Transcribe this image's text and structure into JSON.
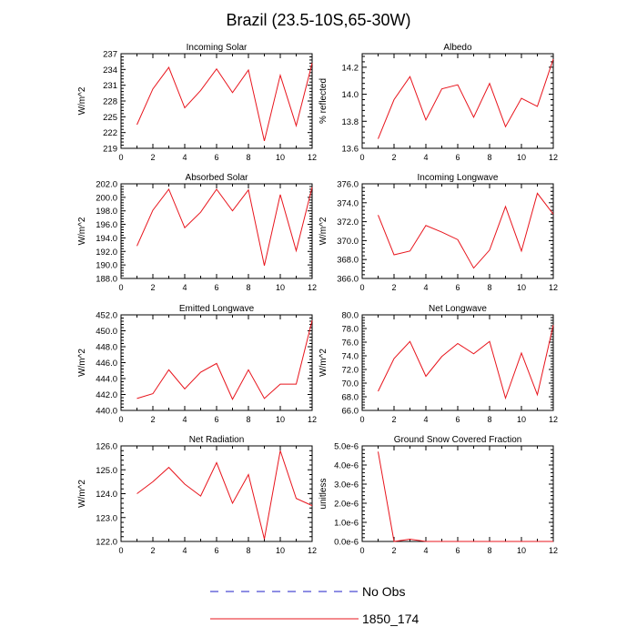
{
  "title": "Brazil (23.5-10S,65-30W)",
  "colors": {
    "model": "#e8141c",
    "obs": "#1c1cc8",
    "axis": "#000000"
  },
  "legend": [
    {
      "label": "No Obs",
      "style": "dashed",
      "color": "#1c1cc8"
    },
    {
      "label": "1850_174",
      "style": "solid",
      "color": "#e8141c"
    }
  ],
  "chart_data": [
    {
      "type": "line",
      "title": "Incoming Solar",
      "ylabel": "W/m^2",
      "xlim": [
        0,
        12
      ],
      "xticks": [
        0,
        2,
        4,
        6,
        8,
        10,
        12
      ],
      "ylim": [
        219,
        237
      ],
      "yticks": [
        "219",
        "222",
        "225",
        "228",
        "231",
        "234",
        "237"
      ],
      "ytick_values": [
        219,
        222,
        225,
        228,
        231,
        234,
        237
      ],
      "right_labels": false,
      "x": [
        1,
        2,
        3,
        4,
        5,
        6,
        7,
        8,
        9,
        10,
        11,
        12
      ],
      "series": [
        {
          "name": "1850_174",
          "values": [
            223.5,
            230.3,
            234.4,
            226.7,
            230.0,
            234.1,
            229.6,
            233.9,
            220.4,
            232.9,
            223.3,
            235.2
          ]
        }
      ]
    },
    {
      "type": "line",
      "title": "Albedo",
      "ylabel": "% reflected",
      "xlim": [
        0,
        12
      ],
      "xticks": [
        0,
        2,
        4,
        6,
        8,
        10,
        12
      ],
      "ylim": [
        13.6,
        14.3
      ],
      "yticks": [
        "13.6",
        "13.8",
        "14.0",
        "14.2"
      ],
      "ytick_values": [
        13.6,
        13.8,
        14.0,
        14.2
      ],
      "right_labels": true,
      "x": [
        1,
        2,
        3,
        4,
        5,
        6,
        7,
        8,
        9,
        10,
        11,
        12
      ],
      "series": [
        {
          "name": "1850_174",
          "values": [
            13.67,
            13.96,
            14.13,
            13.81,
            14.04,
            14.07,
            13.83,
            14.08,
            13.76,
            13.97,
            13.91,
            14.26
          ]
        }
      ]
    },
    {
      "type": "line",
      "title": "Absorbed Solar",
      "ylabel": "W/m^2",
      "xlim": [
        0,
        12
      ],
      "xticks": [
        0,
        2,
        4,
        6,
        8,
        10,
        12
      ],
      "ylim": [
        188.0,
        202.0
      ],
      "yticks": [
        "188.0",
        "190.0",
        "192.0",
        "194.0",
        "196.0",
        "198.0",
        "200.0",
        "202.0"
      ],
      "ytick_values": [
        188,
        190,
        192,
        194,
        196,
        198,
        200,
        202
      ],
      "right_labels": false,
      "x": [
        1,
        2,
        3,
        4,
        5,
        6,
        7,
        8,
        9,
        10,
        11,
        12
      ],
      "series": [
        {
          "name": "1850_174",
          "values": [
            192.8,
            198.1,
            201.2,
            195.5,
            197.8,
            201.2,
            198.0,
            201.1,
            189.9,
            200.4,
            192.1,
            201.5
          ]
        }
      ]
    },
    {
      "type": "line",
      "title": "Incoming Longwave",
      "ylabel": "W/m^2",
      "xlim": [
        0,
        12
      ],
      "xticks": [
        0,
        2,
        4,
        6,
        8,
        10,
        12
      ],
      "ylim": [
        366.0,
        376.0
      ],
      "yticks": [
        "366.0",
        "368.0",
        "370.0",
        "372.0",
        "374.0",
        "376.0"
      ],
      "ytick_values": [
        366,
        368,
        370,
        372,
        374,
        376
      ],
      "right_labels": true,
      "x": [
        1,
        2,
        3,
        4,
        5,
        6,
        7,
        8,
        9,
        10,
        11,
        12
      ],
      "series": [
        {
          "name": "1850_174",
          "values": [
            372.7,
            368.5,
            368.9,
            371.6,
            370.9,
            370.1,
            367.1,
            369.0,
            373.6,
            368.9,
            375.0,
            372.8
          ]
        }
      ]
    },
    {
      "type": "line",
      "title": "Emitted Longwave",
      "ylabel": "W/m^2",
      "xlim": [
        0,
        12
      ],
      "xticks": [
        0,
        2,
        4,
        6,
        8,
        10,
        12
      ],
      "ylim": [
        440.0,
        452.0
      ],
      "yticks": [
        "440.0",
        "442.0",
        "444.0",
        "446.0",
        "448.0",
        "450.0",
        "452.0"
      ],
      "ytick_values": [
        440,
        442,
        444,
        446,
        448,
        450,
        452
      ],
      "right_labels": false,
      "x": [
        1,
        2,
        3,
        4,
        5,
        6,
        7,
        8,
        9,
        10,
        11,
        12
      ],
      "series": [
        {
          "name": "1850_174",
          "values": [
            441.5,
            442.1,
            445.1,
            442.7,
            444.8,
            445.9,
            441.4,
            445.1,
            441.5,
            443.3,
            443.3,
            451.3
          ]
        }
      ]
    },
    {
      "type": "line",
      "title": "Net Longwave",
      "ylabel": "W/m^2",
      "xlim": [
        0,
        12
      ],
      "xticks": [
        0,
        2,
        4,
        6,
        8,
        10,
        12
      ],
      "ylim": [
        66.0,
        80.0
      ],
      "yticks": [
        "66.0",
        "68.0",
        "70.0",
        "72.0",
        "74.0",
        "76.0",
        "78.0",
        "80.0"
      ],
      "ytick_values": [
        66,
        68,
        70,
        72,
        74,
        76,
        78,
        80
      ],
      "right_labels": true,
      "x": [
        1,
        2,
        3,
        4,
        5,
        6,
        7,
        8,
        9,
        10,
        11,
        12
      ],
      "series": [
        {
          "name": "1850_174",
          "values": [
            68.8,
            73.6,
            76.1,
            71.0,
            73.9,
            75.8,
            74.3,
            76.1,
            67.8,
            74.4,
            68.3,
            78.5
          ]
        }
      ]
    },
    {
      "type": "line",
      "title": "Net Radiation",
      "ylabel": "W/m^2",
      "xlim": [
        0,
        12
      ],
      "xticks": [
        0,
        2,
        4,
        6,
        8,
        10,
        12
      ],
      "ylim": [
        122.0,
        126.0
      ],
      "yticks": [
        "122.0",
        "123.0",
        "124.0",
        "125.0",
        "126.0"
      ],
      "ytick_values": [
        122,
        123,
        124,
        125,
        126
      ],
      "right_labels": false,
      "x": [
        1,
        2,
        3,
        4,
        5,
        6,
        7,
        8,
        9,
        10,
        11,
        12
      ],
      "series": [
        {
          "name": "1850_174",
          "values": [
            124.0,
            124.5,
            125.1,
            124.4,
            123.9,
            125.3,
            123.6,
            124.8,
            122.1,
            125.8,
            123.8,
            123.5
          ]
        }
      ]
    },
    {
      "type": "line",
      "title": "Ground Snow Covered Fraction",
      "ylabel": "unitless",
      "xlim": [
        0,
        12
      ],
      "xticks": [
        0,
        2,
        4,
        6,
        8,
        10,
        12
      ],
      "ylim": [
        0,
        5e-06
      ],
      "yticks": [
        "0.0e-6",
        "1.0e-6",
        "2.0e-6",
        "3.0e-6",
        "4.0e-6",
        "5.0e-6"
      ],
      "ytick_values": [
        0,
        1e-06,
        2e-06,
        3e-06,
        4e-06,
        5e-06
      ],
      "right_labels": true,
      "x": [
        1,
        2,
        3,
        4,
        5,
        6,
        7,
        8,
        9,
        10,
        11,
        12
      ],
      "series": [
        {
          "name": "1850_174",
          "values": [
            4.7e-06,
            0.0,
            1.2e-07,
            0.0,
            0.0,
            0.0,
            0.0,
            0.0,
            0.0,
            0.0,
            0.0,
            0.0
          ]
        }
      ]
    }
  ]
}
